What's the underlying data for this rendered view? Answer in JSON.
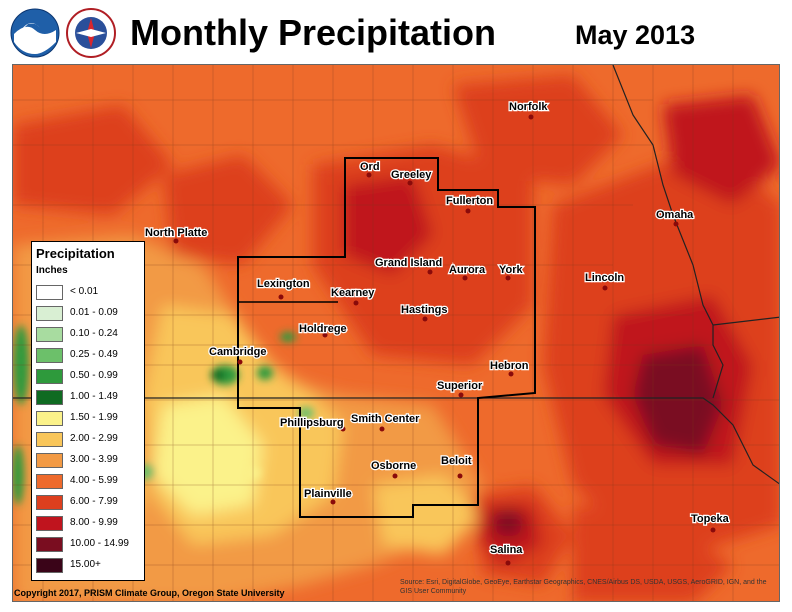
{
  "header": {
    "title": "Monthly Precipitation",
    "month": "May 2013"
  },
  "colors": {
    "lt001": "#ffffff",
    "c001_009": "#d9efd3",
    "c010_024": "#a8dca0",
    "c025_049": "#6cc06a",
    "c050_099": "#2e9a3c",
    "c100_149": "#0f6b22",
    "c150_199": "#fbf28a",
    "c200_299": "#f9c65a",
    "c300_399": "#f29a44",
    "c400_599": "#ee6a2c",
    "c600_799": "#dd3f1e",
    "c800_999": "#c0141e",
    "c1000_1499": "#7a0d20",
    "c1500": "#3a0418",
    "boundary": "#1a1a1a"
  },
  "legend": {
    "title": "Precipitation",
    "units": "Inches",
    "items": [
      {
        "label": "< 0.01",
        "color": "#ffffff"
      },
      {
        "label": "0.01 - 0.09",
        "color": "#d9efd3"
      },
      {
        "label": "0.10 - 0.24",
        "color": "#a8dca0"
      },
      {
        "label": "0.25 - 0.49",
        "color": "#6cc06a"
      },
      {
        "label": "0.50 - 0.99",
        "color": "#2e9a3c"
      },
      {
        "label": "1.00 - 1.49",
        "color": "#0f6b22"
      },
      {
        "label": "1.50 - 1.99",
        "color": "#fbf28a"
      },
      {
        "label": "2.00 - 2.99",
        "color": "#f9c65a"
      },
      {
        "label": "3.00 - 3.99",
        "color": "#f29a44"
      },
      {
        "label": "4.00 - 5.99",
        "color": "#ee6a2c"
      },
      {
        "label": "6.00 - 7.99",
        "color": "#dd3f1e"
      },
      {
        "label": "8.00 - 9.99",
        "color": "#c0141e"
      },
      {
        "label": "10.00 - 14.99",
        "color": "#7a0d20"
      },
      {
        "label": "15.00+",
        "color": "#3a0418"
      }
    ]
  },
  "cities": [
    "Norfolk",
    "Ord",
    "Greeley",
    "Fullerton",
    "North Platte",
    "Omaha",
    "Grand Island",
    "Aurora",
    "York",
    "Lincoln",
    "Lexington",
    "Kearney",
    "Hastings",
    "Holdrege",
    "Cambridge",
    "Hebron",
    "Superior",
    "Phillipsburg",
    "Smith Center",
    "Beloit",
    "Osborne",
    "Plainville",
    "Topeka",
    "Salina"
  ],
  "footer": {
    "copyright": "Copyright 2017, PRISM Climate Group, Oregon State University",
    "source": "Source: Esri, DigitalGlobe, GeoEye, Earthstar Geographics, CNES/Airbus DS, USDA, USGS, AeroGRID, IGN, and the GIS User Community"
  }
}
